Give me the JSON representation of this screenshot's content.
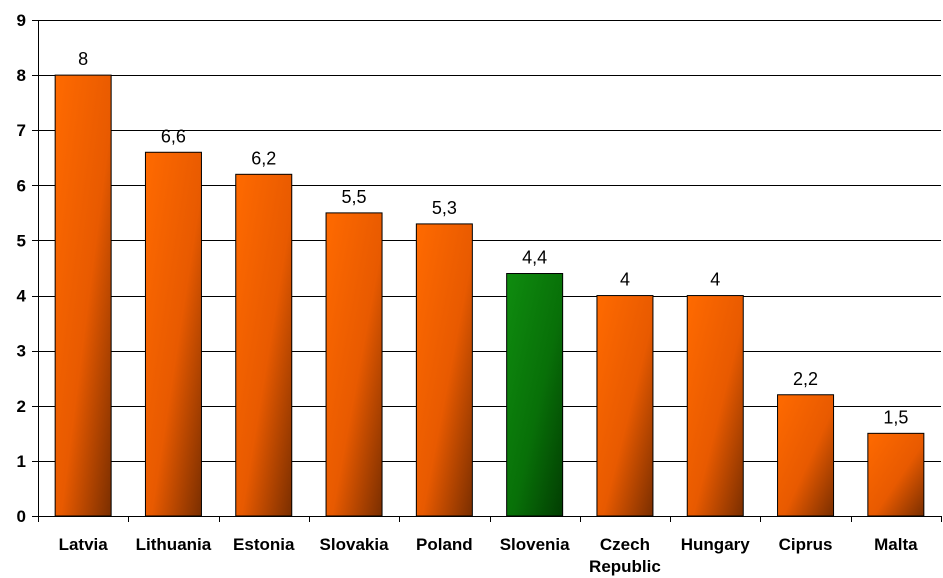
{
  "chart_data": {
    "type": "bar",
    "categories": [
      "Latvia",
      "Lithuania",
      "Estonia",
      "Slovakia",
      "Poland",
      "Slovenia",
      "Czech Republic",
      "Hungary",
      "Ciprus",
      "Malta"
    ],
    "category_lines": [
      [
        "Latvia"
      ],
      [
        "Lithuania"
      ],
      [
        "Estonia"
      ],
      [
        "Slovakia"
      ],
      [
        "Poland"
      ],
      [
        "Slovenia"
      ],
      [
        "Czech",
        "Republic"
      ],
      [
        "Hungary"
      ],
      [
        "Ciprus"
      ],
      [
        "Malta"
      ]
    ],
    "values": [
      8,
      6.6,
      6.2,
      5.5,
      5.3,
      4.4,
      4,
      4,
      2.2,
      1.5
    ],
    "value_labels": [
      "8",
      "6,6",
      "6,2",
      "5,5",
      "5,3",
      "4,4",
      "4",
      "4",
      "2,2",
      "1,5"
    ],
    "highlight_category": "Slovenia",
    "ylim": [
      0,
      9
    ],
    "yticks": [
      0,
      1,
      2,
      3,
      4,
      5,
      6,
      7,
      8,
      9
    ],
    "grid": true,
    "title": "",
    "xlabel": "",
    "ylabel": "",
    "colors": {
      "bar_light": "#ff6a00",
      "bar_dark": "#7a2e00",
      "highlight_light": "#0f8c0f",
      "highlight_dark": "#023d02",
      "grid": "#000000"
    }
  }
}
